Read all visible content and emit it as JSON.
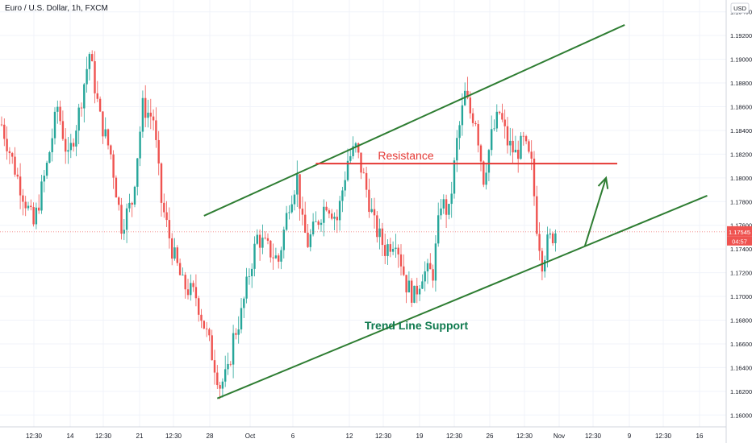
{
  "header": {
    "symbol_title": "Euro / U.S. Dollar, 1h, FXCM"
  },
  "price_axis": {
    "currency_label": "USD",
    "current_price": "1.17545",
    "countdown": "04:57"
  },
  "colors": {
    "bull": "#26a69a",
    "bear": "#ef5350",
    "trend": "#2e7d32",
    "resistance": "#e53935",
    "support_text": "#0f7a4f",
    "price_badge": "#ef5350",
    "grid": "#f0f3fa",
    "axis_text": "#131722"
  },
  "chart_data": {
    "type": "candlestick",
    "title": "Euro / U.S. Dollar, 1h, FXCM",
    "ylim": [
      1.159,
      1.195
    ],
    "y_ticks": [
      "1.16000",
      "1.16200",
      "1.16400",
      "1.16600",
      "1.16800",
      "1.17000",
      "1.17200",
      "1.17400",
      "1.17600",
      "1.17800",
      "1.18000",
      "1.18200",
      "1.18400",
      "1.18600",
      "1.18800",
      "1.19000",
      "1.19200",
      "1.19400"
    ],
    "x_ticks": [
      "12:30",
      "14",
      "12:30",
      "21",
      "12:30",
      "28",
      "Oct",
      "6",
      "12",
      "12:30",
      "19",
      "12:30",
      "26",
      "12:30",
      "Nov",
      "12:30",
      "9",
      "12:30",
      "16"
    ],
    "current_price": 1.17545,
    "price_path": [
      [
        0,
        1.1845
      ],
      [
        6,
        1.18
      ],
      [
        12,
        1.176
      ],
      [
        17,
        1.181
      ],
      [
        21,
        1.186
      ],
      [
        25,
        1.1815
      ],
      [
        29,
        1.1855
      ],
      [
        33,
        1.1905
      ],
      [
        37,
        1.185
      ],
      [
        41,
        1.182
      ],
      [
        45,
        1.176
      ],
      [
        49,
        1.178
      ],
      [
        53,
        1.186
      ],
      [
        57,
        1.185
      ],
      [
        60,
        1.178
      ],
      [
        64,
        1.174
      ],
      [
        68,
        1.171
      ],
      [
        73,
        1.17
      ],
      [
        78,
        1.166
      ],
      [
        82,
        1.1625
      ],
      [
        85,
        1.1635
      ],
      [
        87,
        1.1665
      ],
      [
        90,
        1.1685
      ],
      [
        93,
        1.172
      ],
      [
        96,
        1.175
      ],
      [
        100,
        1.174
      ],
      [
        104,
        1.173
      ],
      [
        108,
        1.178
      ],
      [
        111,
        1.18
      ],
      [
        113,
        1.176
      ],
      [
        115,
        1.1745
      ],
      [
        118,
        1.176
      ],
      [
        122,
        1.178
      ],
      [
        126,
        1.1765
      ],
      [
        130,
        1.1815
      ],
      [
        133,
        1.1825
      ],
      [
        136,
        1.18
      ],
      [
        140,
        1.176
      ],
      [
        144,
        1.174
      ],
      [
        148,
        1.175
      ],
      [
        152,
        1.171
      ],
      [
        155,
        1.17
      ],
      [
        158,
        1.172
      ],
      [
        162,
        1.172
      ],
      [
        165,
        1.178
      ],
      [
        168,
        1.177
      ],
      [
        171,
        1.183
      ],
      [
        174,
        1.187
      ],
      [
        176,
        1.1855
      ],
      [
        178,
        1.185
      ],
      [
        181,
        1.18
      ],
      [
        184,
        1.1835
      ],
      [
        187,
        1.1855
      ],
      [
        190,
        1.183
      ],
      [
        193,
        1.182
      ],
      [
        196,
        1.183
      ],
      [
        199,
        1.181
      ],
      [
        201,
        1.176
      ],
      [
        203,
        1.173
      ],
      [
        205,
        1.1745
      ],
      [
        208,
        1.1755
      ]
    ],
    "annotations": {
      "resistance": {
        "label": "Resistance",
        "price": 1.1812,
        "from_bar": 118,
        "to_bar": 250
      },
      "support_label": "Trend Line Support",
      "upper_channel": {
        "from": [
          76,
          1.1768
        ],
        "to": [
          234,
          1.1929
        ]
      },
      "lower_channel": {
        "from": [
          81,
          1.1614
        ],
        "to": [
          265,
          1.1785
        ]
      },
      "projection_arrow": {
        "from": [
          219,
          1.1742
        ],
        "to": [
          227,
          1.18
        ]
      }
    }
  }
}
